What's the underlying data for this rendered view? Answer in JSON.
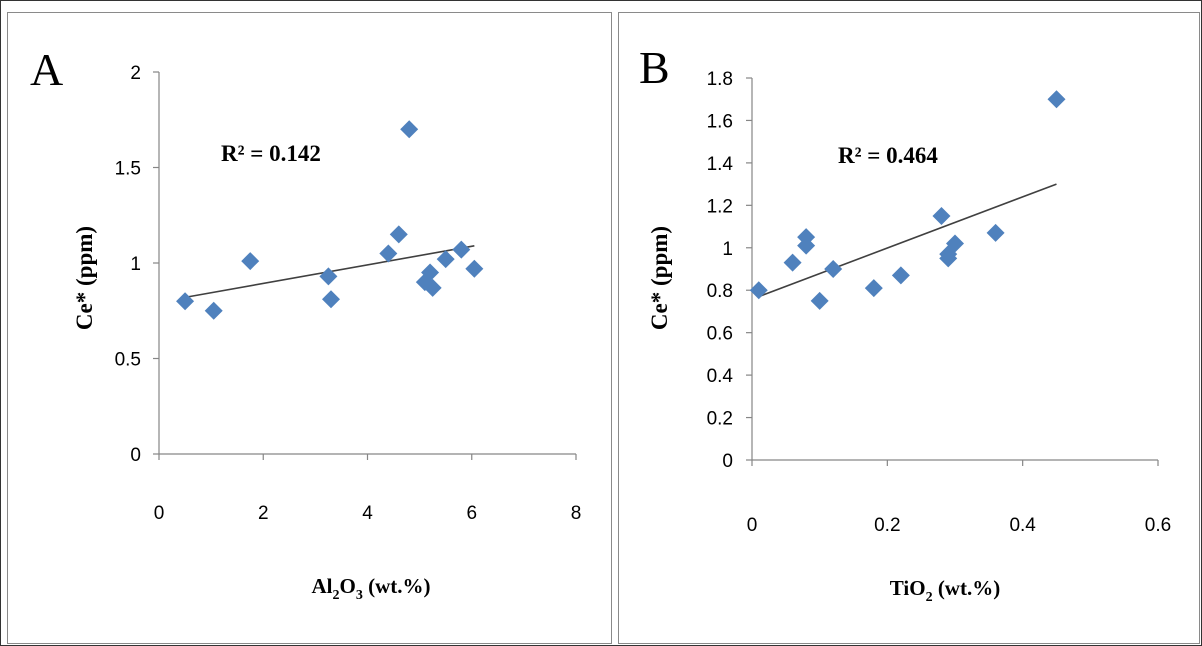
{
  "chart_data": [
    {
      "type": "scatter",
      "panel_label": "A",
      "xlabel": "Al2O3 (wt.%)",
      "xlabel_parts": {
        "main": "Al",
        "sub1": "2",
        "mid": "O",
        "sub2": "3",
        "unit": " (wt.%)"
      },
      "ylabel": "Ce* (ppm)",
      "xlim": [
        0,
        8
      ],
      "ylim": [
        0,
        2
      ],
      "xticks": [
        0,
        2,
        4,
        6,
        8
      ],
      "yticks": [
        0,
        0.5,
        1,
        1.5,
        2
      ],
      "xtick_labels": [
        "0",
        "2",
        "4",
        "6",
        "8"
      ],
      "ytick_labels": [
        "0",
        "0.5",
        "1",
        "1.5",
        "2"
      ],
      "grid": false,
      "marker_color": "#4f81bd",
      "points": [
        {
          "x": 0.5,
          "y": 0.8
        },
        {
          "x": 1.05,
          "y": 0.75
        },
        {
          "x": 1.75,
          "y": 1.01
        },
        {
          "x": 3.25,
          "y": 0.93
        },
        {
          "x": 3.3,
          "y": 0.81
        },
        {
          "x": 4.4,
          "y": 1.05
        },
        {
          "x": 4.6,
          "y": 1.15
        },
        {
          "x": 4.8,
          "y": 1.7
        },
        {
          "x": 5.1,
          "y": 0.9
        },
        {
          "x": 5.2,
          "y": 0.95
        },
        {
          "x": 5.25,
          "y": 0.87
        },
        {
          "x": 5.5,
          "y": 1.02
        },
        {
          "x": 5.8,
          "y": 1.07
        },
        {
          "x": 6.05,
          "y": 0.97
        }
      ],
      "trendline": {
        "x": [
          0.5,
          6.05
        ],
        "y": [
          0.82,
          1.09
        ]
      },
      "r2_label": "R² = 0.142"
    },
    {
      "type": "scatter",
      "panel_label": "B",
      "xlabel": "TiO2 (wt.%)",
      "xlabel_parts": {
        "main": "TiO",
        "sub1": "2",
        "mid": "",
        "sub2": "",
        "unit": " (wt.%)"
      },
      "ylabel": "Ce* (ppm)",
      "xlim": [
        0,
        0.6
      ],
      "ylim": [
        0,
        1.8
      ],
      "xticks": [
        0,
        0.2,
        0.4,
        0.6
      ],
      "yticks": [
        0,
        0.2,
        0.4,
        0.6,
        0.8,
        1,
        1.2,
        1.4,
        1.6,
        1.8
      ],
      "xtick_labels": [
        "0",
        "0.2",
        "0.4",
        "0.6"
      ],
      "ytick_labels": [
        "0",
        "0.2",
        "0.4",
        "0.6",
        "0.8",
        "1",
        "1.2",
        "1.4",
        "1.6",
        "1.8"
      ],
      "grid": false,
      "marker_color": "#4f81bd",
      "points": [
        {
          "x": 0.01,
          "y": 0.8
        },
        {
          "x": 0.06,
          "y": 0.93
        },
        {
          "x": 0.08,
          "y": 1.05
        },
        {
          "x": 0.08,
          "y": 1.01
        },
        {
          "x": 0.1,
          "y": 0.75
        },
        {
          "x": 0.12,
          "y": 0.9
        },
        {
          "x": 0.18,
          "y": 0.81
        },
        {
          "x": 0.22,
          "y": 0.87
        },
        {
          "x": 0.28,
          "y": 1.15
        },
        {
          "x": 0.29,
          "y": 0.95
        },
        {
          "x": 0.29,
          "y": 0.97
        },
        {
          "x": 0.3,
          "y": 1.02
        },
        {
          "x": 0.36,
          "y": 1.07
        },
        {
          "x": 0.45,
          "y": 1.7
        }
      ],
      "trendline": {
        "x": [
          0.01,
          0.45
        ],
        "y": [
          0.77,
          1.3
        ]
      },
      "r2_label": "R² = 0.464"
    }
  ]
}
